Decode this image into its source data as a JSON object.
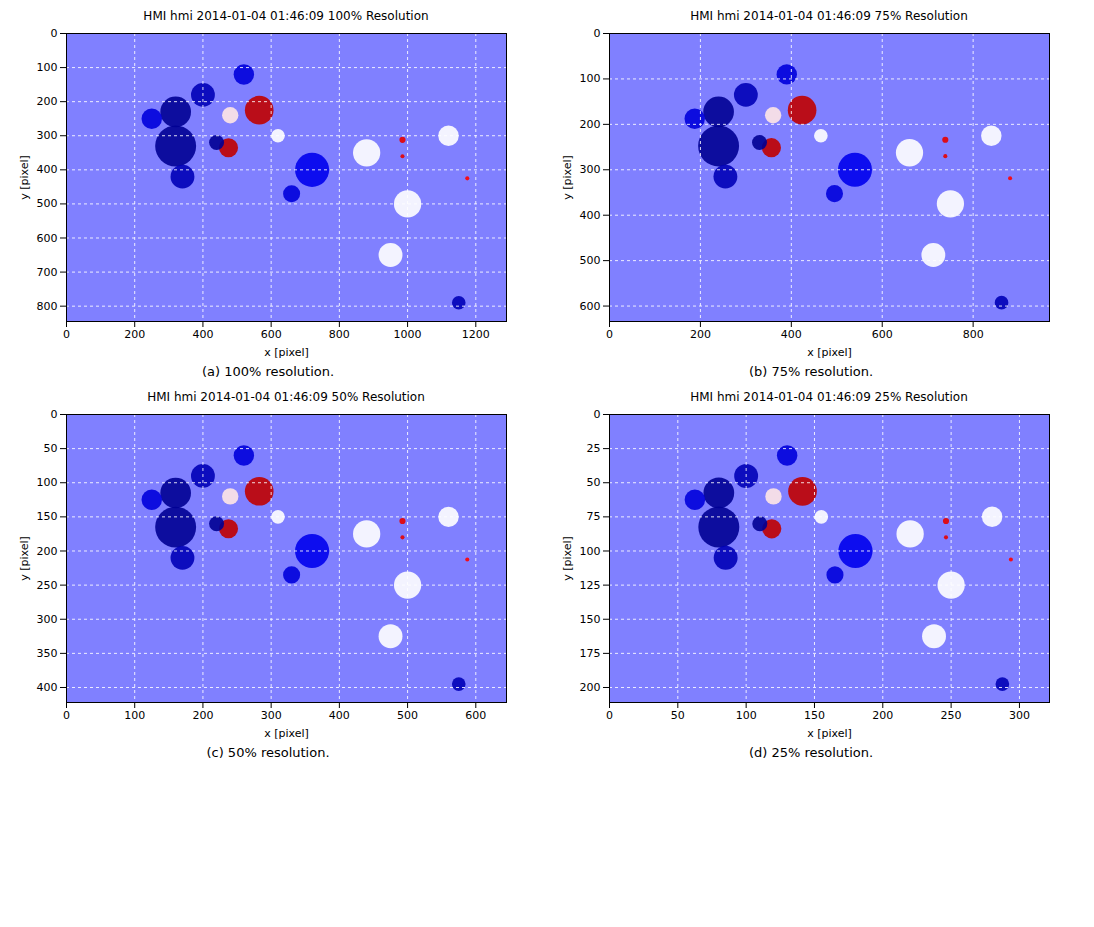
{
  "chart_data": [
    {
      "type": "heatmap",
      "title": "HMI hmi 2014-01-04 01:46:09 100% Resolution",
      "caption": "(a) 100% resolution.",
      "x_label": "x [pixel]",
      "y_label": "y [pixel]",
      "xlim": [
        0,
        1290
      ],
      "ylim": [
        845,
        0
      ],
      "xticks": [
        0,
        200,
        400,
        600,
        800,
        1000,
        1200
      ],
      "yticks": [
        0,
        100,
        200,
        300,
        400,
        500,
        600,
        700,
        800
      ],
      "grid": true,
      "zlim": [
        -1,
        1
      ],
      "background_value": -0.25,
      "features": {
        "x": [
          320,
          320,
          400,
          440,
          340,
          520,
          720,
          660,
          250,
          1150,
          480,
          620,
          880,
          1000,
          950,
          1120,
          565,
          475,
          985,
          985,
          1175
        ],
        "y": [
          330,
          230,
          180,
          320,
          420,
          120,
          400,
          470,
          250,
          790,
          240,
          300,
          350,
          500,
          650,
          300,
          225,
          335,
          312,
          360,
          425
        ],
        "radius": [
          60,
          45,
          35,
          22,
          35,
          30,
          50,
          25,
          30,
          20,
          24,
          20,
          40,
          40,
          35,
          30,
          42,
          28,
          9,
          6,
          6
        ],
        "values": [
          -0.8,
          -0.8,
          -0.7,
          -0.8,
          -0.7,
          -0.6,
          -0.55,
          -0.6,
          -0.6,
          -0.7,
          0.05,
          0,
          0,
          0,
          0,
          0,
          0.75,
          0.75,
          0.6,
          0.6,
          0.5
        ]
      }
    },
    {
      "type": "heatmap",
      "title": "HMI hmi 2014-01-04 01:46:09 75% Resolution",
      "caption": "(b) 75% resolution.",
      "x_label": "x [pixel]",
      "y_label": "y [pixel]",
      "xlim": [
        0,
        968
      ],
      "ylim": [
        634,
        0
      ],
      "xticks": [
        0,
        200,
        400,
        600,
        800
      ],
      "yticks": [
        0,
        100,
        200,
        300,
        400,
        500,
        600
      ],
      "grid": true,
      "zlim": [
        -1,
        1
      ],
      "background_value": -0.25,
      "features": {
        "x": [
          240,
          240,
          300,
          330,
          255,
          390,
          540,
          495,
          187.5,
          862.5,
          360,
          465,
          660,
          750,
          712.5,
          840,
          423.75,
          356.25,
          738.75,
          738.75,
          881.25
        ],
        "y": [
          247.5,
          172.5,
          135,
          240,
          315,
          90,
          300,
          352.5,
          187.5,
          592.5,
          180,
          225,
          262.5,
          375,
          487.5,
          225,
          168.75,
          251.25,
          234,
          270,
          318.75
        ],
        "radius": [
          45,
          33.75,
          26.25,
          16.5,
          26.25,
          22.5,
          37.5,
          18.75,
          22.5,
          15,
          18,
          15,
          30,
          30,
          26.25,
          22.5,
          31.5,
          21,
          6.75,
          4.5,
          4.5
        ],
        "values": [
          -0.8,
          -0.8,
          -0.7,
          -0.8,
          -0.7,
          -0.6,
          -0.55,
          -0.6,
          -0.6,
          -0.7,
          0.05,
          0,
          0,
          0,
          0,
          0,
          0.75,
          0.75,
          0.6,
          0.6,
          0.5
        ]
      }
    },
    {
      "type": "heatmap",
      "title": "HMI hmi 2014-01-04 01:46:09 50% Resolution",
      "caption": "(c) 50% resolution.",
      "x_label": "x [pixel]",
      "y_label": "y [pixel]",
      "xlim": [
        0,
        645
      ],
      "ylim": [
        422,
        0
      ],
      "xticks": [
        0,
        100,
        200,
        300,
        400,
        500,
        600
      ],
      "yticks": [
        0,
        50,
        100,
        150,
        200,
        250,
        300,
        350,
        400
      ],
      "grid": true,
      "zlim": [
        -1,
        1
      ],
      "background_value": -0.25,
      "features": {
        "x": [
          160,
          160,
          200,
          220,
          170,
          260,
          360,
          330,
          125,
          575,
          240,
          310,
          440,
          500,
          475,
          560,
          282.5,
          237.5,
          492.5,
          492.5,
          587.5
        ],
        "y": [
          165,
          115,
          90,
          160,
          210,
          60,
          200,
          235,
          125,
          395,
          120,
          150,
          175,
          250,
          325,
          150,
          112.5,
          167.5,
          156,
          180,
          212.5
        ],
        "radius": [
          30,
          22.5,
          17.5,
          11,
          17.5,
          15,
          25,
          12.5,
          15,
          10,
          12,
          10,
          20,
          20,
          17.5,
          15,
          21,
          14,
          4.5,
          3,
          3
        ],
        "values": [
          -0.8,
          -0.8,
          -0.7,
          -0.8,
          -0.7,
          -0.6,
          -0.55,
          -0.6,
          -0.6,
          -0.7,
          0.05,
          0,
          0,
          0,
          0,
          0,
          0.75,
          0.75,
          0.6,
          0.6,
          0.5
        ]
      }
    },
    {
      "type": "heatmap",
      "title": "HMI hmi 2014-01-04 01:46:09 25% Resolution",
      "caption": "(d) 25% resolution.",
      "x_label": "x [pixel]",
      "y_label": "y [pixel]",
      "xlim": [
        0,
        322
      ],
      "ylim": [
        211,
        0
      ],
      "xticks": [
        0,
        50,
        100,
        150,
        200,
        250,
        300
      ],
      "yticks": [
        0,
        25,
        50,
        75,
        100,
        125,
        150,
        175,
        200
      ],
      "grid": true,
      "zlim": [
        -1,
        1
      ],
      "background_value": -0.25,
      "features": {
        "x": [
          80,
          80,
          100,
          110,
          85,
          130,
          180,
          165,
          62.5,
          287.5,
          120,
          155,
          220,
          250,
          237.5,
          280,
          141.25,
          118.75,
          246.25,
          246.25,
          293.75
        ],
        "y": [
          82.5,
          57.5,
          45,
          80,
          105,
          30,
          100,
          117.5,
          62.5,
          197.5,
          60,
          75,
          87.5,
          125,
          162.5,
          75,
          56.25,
          83.75,
          78,
          90,
          106.25
        ],
        "radius": [
          15,
          11.25,
          8.75,
          5.5,
          8.75,
          7.5,
          12.5,
          6.25,
          7.5,
          5,
          6,
          5,
          10,
          10,
          8.75,
          7.5,
          10.5,
          7,
          2.25,
          1.5,
          1.5
        ],
        "values": [
          -0.8,
          -0.8,
          -0.7,
          -0.8,
          -0.7,
          -0.6,
          -0.55,
          -0.6,
          -0.6,
          -0.7,
          0.05,
          0,
          0,
          0,
          0,
          0,
          0.75,
          0.75,
          0.6,
          0.6,
          0.5
        ]
      }
    }
  ]
}
